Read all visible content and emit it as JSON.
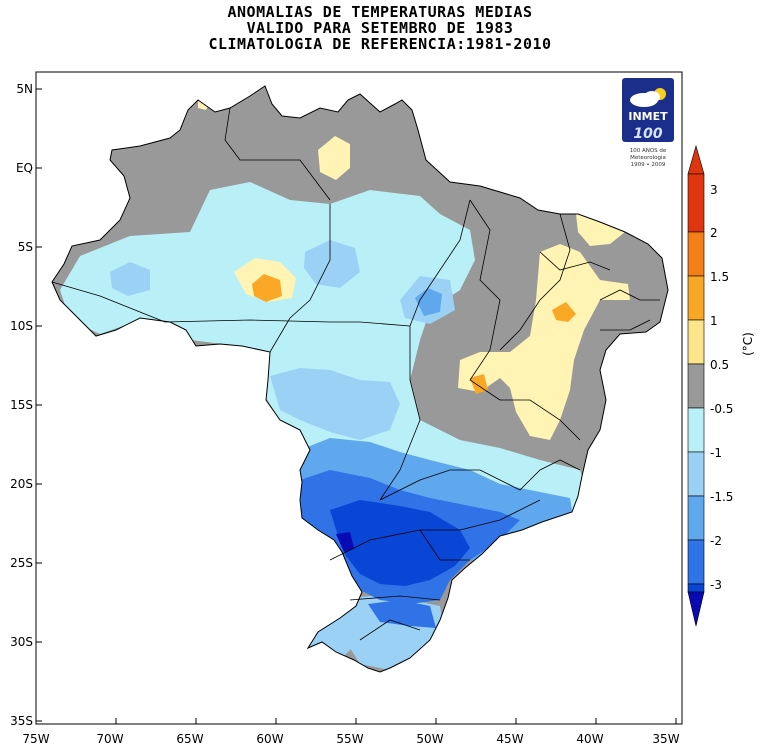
{
  "title": {
    "line1": "ANOMALIAS DE TEMPERATURAS MEDIAS",
    "line2": "VALIDO PARA SETEMBRO DE 1983",
    "line3": "CLIMATOLOGIA DE REFERENCIA:1981-2010"
  },
  "axes": {
    "lat_ticks": [
      "5N",
      "EQ",
      "5S",
      "10S",
      "15S",
      "20S",
      "25S",
      "30S",
      "35S"
    ],
    "lon_ticks": [
      "75W",
      "70W",
      "65W",
      "60W",
      "55W",
      "50W",
      "45W",
      "40W",
      "35W"
    ]
  },
  "colorbar": {
    "unit": "(°C)",
    "labels": [
      "3",
      "2",
      "1.5",
      "1",
      "0.5",
      "-0.5",
      "-1",
      "-1.5",
      "-2",
      "-3"
    ],
    "colors": [
      "#e0360f",
      "#f57f17",
      "#f9a825",
      "#fce48a",
      "#fff4b3",
      "#999999",
      "#b9f0f7",
      "#9bd1f5",
      "#5fa8ee",
      "#2f73e6",
      "#0a46d6",
      "#0a0ab4"
    ]
  },
  "logo": {
    "name": "INMET",
    "number": "100",
    "caption_line1": "100 ANOS de",
    "caption_line2": "Meteorologia",
    "caption_line3": "1909 • 2009"
  },
  "legend_colors": {
    "neutral": "#999999",
    "light_cyan": "#b9f0f7",
    "light_blue": "#9bd1f5",
    "mid_blue": "#5fa8ee",
    "blue": "#2f73e6",
    "dark_blue": "#0a46d6",
    "navy": "#0a0ab4",
    "light_yellow": "#fff4b3",
    "yellow": "#fce48a",
    "orange": "#f9a825"
  }
}
